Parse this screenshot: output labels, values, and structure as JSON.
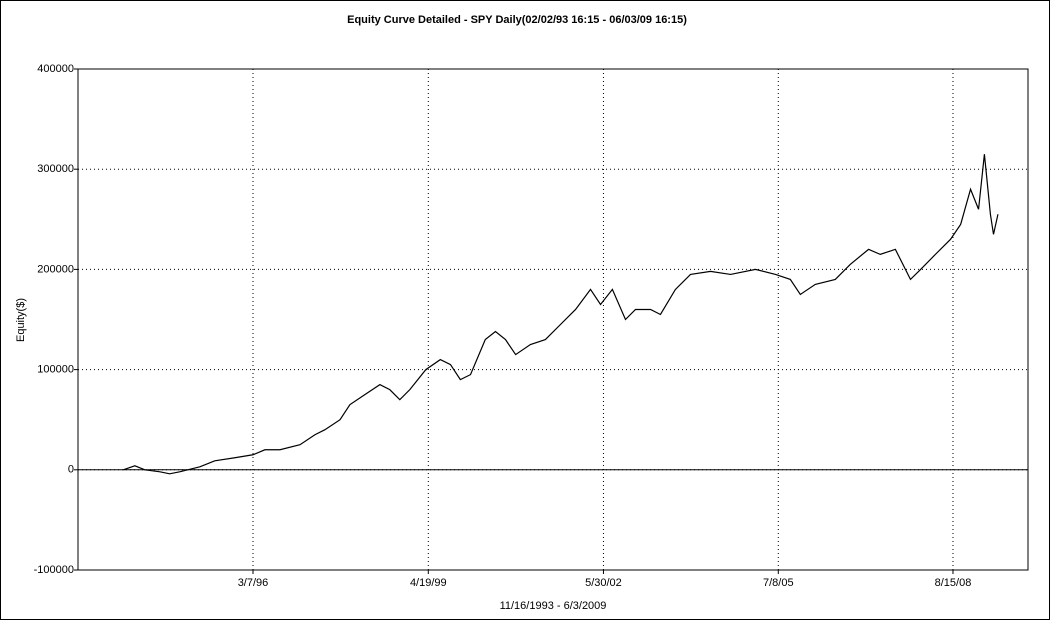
{
  "chart_data": {
    "type": "line",
    "title": "Equity Curve Detailed - SPY Daily(02/02/93 16:15 - 06/03/09 16:15)",
    "y_label": "Equity($)",
    "x_label": "11/16/1993 - 6/3/2009",
    "x": [
      "1993-11-16",
      "1994-01-30",
      "1994-04-05",
      "1994-07-12",
      "1994-09-13",
      "1994-11-17",
      "1995-03-28",
      "1995-07-03",
      "1995-11-10",
      "1996-03-07",
      "1996-05-23",
      "1996-08-29",
      "1997-01-06",
      "1997-04-13",
      "1997-06-17",
      "1997-09-23",
      "1997-11-26",
      "1998-03-03",
      "1998-06-09",
      "1998-08-12",
      "1998-10-16",
      "1998-12-20",
      "1999-04-03",
      "1999-07-06",
      "1999-09-10",
      "1999-11-13",
      "2000-01-18",
      "2000-04-23",
      "2000-06-28",
      "2000-09-01",
      "2000-11-06",
      "2001-02-10",
      "2001-05-18",
      "2001-08-24",
      "2001-11-30",
      "2002-03-07",
      "2002-05-11",
      "2002-07-27",
      "2002-10-20",
      "2002-12-24",
      "2003-04-01",
      "2003-06-04",
      "2003-09-09",
      "2003-12-16",
      "2004-04-24",
      "2004-09-01",
      "2005-02-10",
      "2005-06-20",
      "2005-09-24",
      "2005-11-28",
      "2006-03-05",
      "2006-07-13",
      "2006-10-18",
      "2007-02-14",
      "2007-05-01",
      "2007-08-07",
      "2007-11-13",
      "2008-01-18",
      "2008-04-23",
      "2008-07-30",
      "2008-10-04",
      "2008-12-07",
      "2009-01-28",
      "2009-03-07",
      "2009-04-15",
      "2009-05-05",
      "2009-06-03"
    ],
    "series": [
      {
        "name": "Equity",
        "color": "#000000",
        "values": [
          0,
          4000,
          0,
          -2000,
          -4000,
          -2000,
          3000,
          9000,
          12000,
          15000,
          20000,
          20000,
          25000,
          35000,
          40000,
          50000,
          65000,
          75000,
          85000,
          80000,
          70000,
          80000,
          100000,
          110000,
          105000,
          90000,
          95000,
          130000,
          138000,
          130000,
          115000,
          125000,
          130000,
          145000,
          160000,
          180000,
          165000,
          180000,
          150000,
          160000,
          160000,
          155000,
          180000,
          195000,
          198000,
          195000,
          200000,
          195000,
          190000,
          175000,
          185000,
          190000,
          205000,
          220000,
          215000,
          220000,
          190000,
          200000,
          215000,
          230000,
          245000,
          280000,
          260000,
          315000,
          255000,
          235000,
          255000
        ]
      }
    ],
    "xlim": [
      "1993-01-26",
      "2009-12-15"
    ],
    "xticks": [
      {
        "value": "1996-03-07",
        "label": "3/7/96"
      },
      {
        "value": "1999-04-19",
        "label": "4/19/99"
      },
      {
        "value": "2002-05-30",
        "label": "5/30/02"
      },
      {
        "value": "2005-07-08",
        "label": "7/8/05"
      },
      {
        "value": "2008-08-15",
        "label": "8/15/08"
      }
    ],
    "ylim": [
      -100000,
      400000
    ],
    "yticks": [
      -100000,
      0,
      100000,
      200000,
      300000,
      400000
    ],
    "grid": true
  }
}
